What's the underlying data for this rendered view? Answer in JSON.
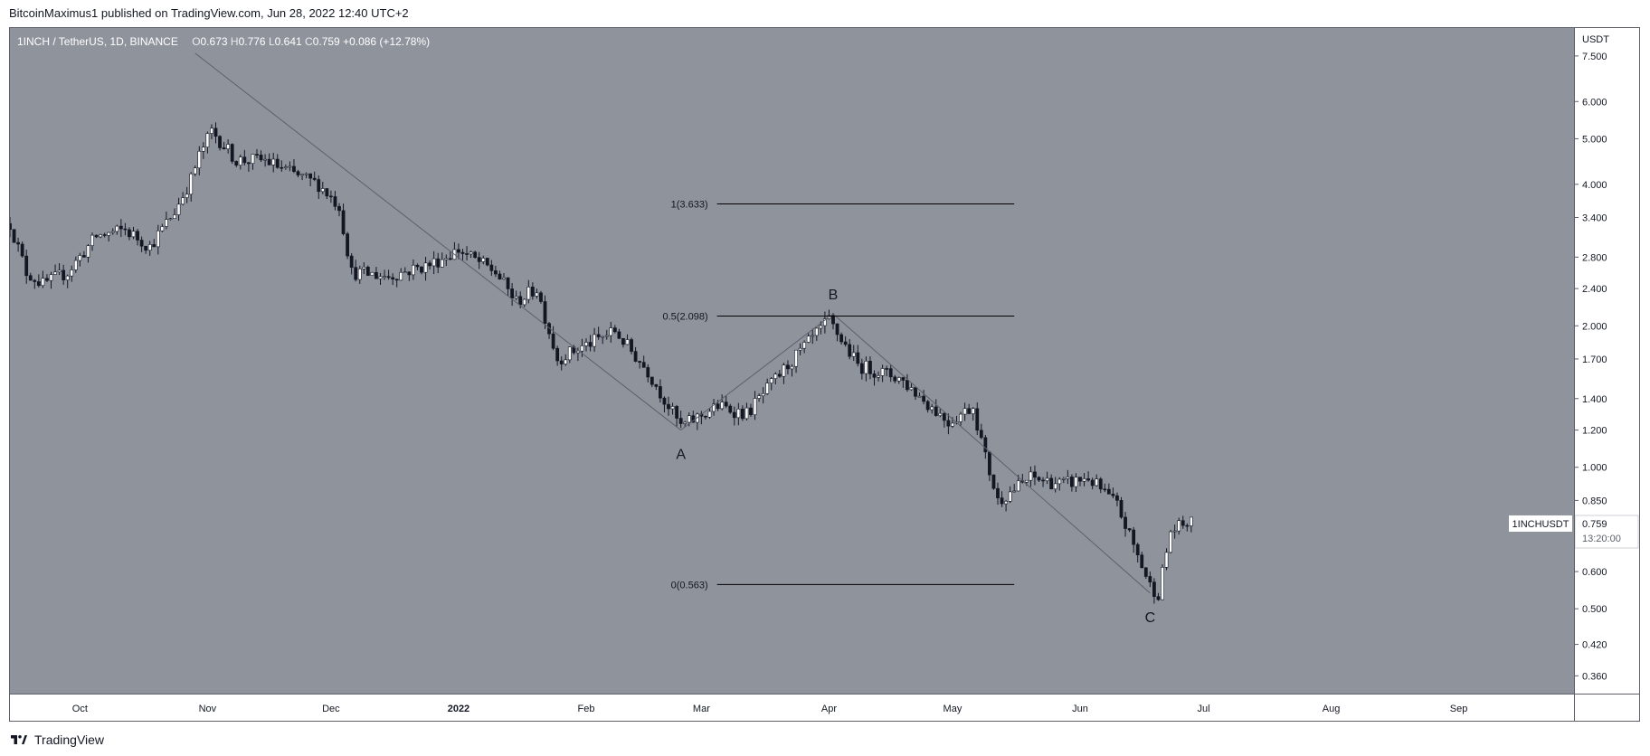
{
  "header": {
    "text": "BitcoinMaximus1 published on TradingView.com, Jun 28, 2022 12:40 UTC+2"
  },
  "legend": {
    "symbol": "1INCH / TetherUS, 1D, BINANCE",
    "o_label": "O",
    "o": "0.673",
    "h_label": "H",
    "h": "0.776",
    "l_label": "L",
    "l": "0.641",
    "c_label": "C",
    "c": "0.759",
    "change": "+0.086 (+12.78%)"
  },
  "price_axis": {
    "currency": "USDT"
  },
  "last_price": {
    "symbol": "1INCHUSDT",
    "price": "0.759",
    "countdown": "13:20:00"
  },
  "footer": {
    "brand": "TradingView"
  },
  "colors": {
    "plot_background": "#8f939c",
    "candles": "#131722",
    "candle_body_up": "#ffffff",
    "candle_body_down": "#131722",
    "lines": "#000000",
    "trend_lines": "#5d606b"
  },
  "icons": {
    "footer_logo": "tradingview-logo-icon"
  },
  "chart_data": {
    "type": "candlestick",
    "scale": "log",
    "y_unit": "USDT",
    "ylim": [
      0.33,
      8.6
    ],
    "y_ticks": [
      {
        "v": 7.5,
        "label": "7.500"
      },
      {
        "v": 6.0,
        "label": "6.000"
      },
      {
        "v": 5.0,
        "label": "5.000"
      },
      {
        "v": 4.0,
        "label": "4.000"
      },
      {
        "v": 3.4,
        "label": "3.400"
      },
      {
        "v": 2.8,
        "label": "2.800"
      },
      {
        "v": 2.4,
        "label": "2.400"
      },
      {
        "v": 2.0,
        "label": "2.000"
      },
      {
        "v": 1.7,
        "label": "1.700"
      },
      {
        "v": 1.4,
        "label": "1.400"
      },
      {
        "v": 1.2,
        "label": "1.200"
      },
      {
        "v": 1.0,
        "label": "1.000"
      },
      {
        "v": 0.85,
        "label": "0.850"
      },
      {
        "v": 0.6,
        "label": "0.600"
      },
      {
        "v": 0.5,
        "label": "0.500"
      },
      {
        "v": 0.42,
        "label": "0.420"
      },
      {
        "v": 0.36,
        "label": "0.360"
      }
    ],
    "xlim": [
      "2021-09-14",
      "2022-09-29"
    ],
    "x_ticks": [
      {
        "date": "2021-10-01",
        "label": "Oct"
      },
      {
        "date": "2021-11-01",
        "label": "Nov"
      },
      {
        "date": "2021-12-01",
        "label": "Dec"
      },
      {
        "date": "2022-01-01",
        "label": "2022"
      },
      {
        "date": "2022-02-01",
        "label": "Feb"
      },
      {
        "date": "2022-03-01",
        "label": "Mar"
      },
      {
        "date": "2022-04-01",
        "label": "Apr"
      },
      {
        "date": "2022-05-01",
        "label": "May"
      },
      {
        "date": "2022-06-01",
        "label": "Jun"
      },
      {
        "date": "2022-07-01",
        "label": "Jul"
      },
      {
        "date": "2022-08-01",
        "label": "Aug"
      },
      {
        "date": "2022-09-01",
        "label": "Sep"
      }
    ],
    "start_date": "2021-09-14",
    "close_anchors": [
      [
        "2021-09-14",
        3.3
      ],
      [
        "2021-09-18",
        2.6
      ],
      [
        "2021-09-22",
        2.45
      ],
      [
        "2021-09-28",
        2.6
      ],
      [
        "2021-10-05",
        3.1
      ],
      [
        "2021-10-12",
        3.2
      ],
      [
        "2021-10-18",
        2.95
      ],
      [
        "2021-10-24",
        3.5
      ],
      [
        "2021-10-28",
        4.1
      ],
      [
        "2021-10-30",
        4.6
      ],
      [
        "2021-11-02",
        5.2
      ],
      [
        "2021-11-08",
        4.5
      ],
      [
        "2021-11-15",
        4.5
      ],
      [
        "2021-11-22",
        4.2
      ],
      [
        "2021-11-28",
        4.0
      ],
      [
        "2021-12-03",
        3.6
      ],
      [
        "2021-12-06",
        2.6
      ],
      [
        "2021-12-15",
        2.55
      ],
      [
        "2021-12-25",
        2.7
      ],
      [
        "2022-01-01",
        2.9
      ],
      [
        "2022-01-10",
        2.6
      ],
      [
        "2022-01-15",
        2.25
      ],
      [
        "2022-01-20",
        2.4
      ],
      [
        "2022-01-25",
        1.7
      ],
      [
        "2022-02-08",
        1.95
      ],
      [
        "2022-02-16",
        1.6
      ],
      [
        "2022-02-24",
        1.22
      ],
      [
        "2022-03-05",
        1.35
      ],
      [
        "2022-03-12",
        1.3
      ],
      [
        "2022-03-22",
        1.65
      ],
      [
        "2022-04-01",
        2.05
      ],
      [
        "2022-04-08",
        1.65
      ],
      [
        "2022-04-18",
        1.55
      ],
      [
        "2022-04-30",
        1.25
      ],
      [
        "2022-05-06",
        1.35
      ],
      [
        "2022-05-09",
        1.05
      ],
      [
        "2022-05-12",
        0.85
      ],
      [
        "2022-05-20",
        0.95
      ],
      [
        "2022-05-28",
        0.92
      ],
      [
        "2022-06-03",
        0.95
      ],
      [
        "2022-06-10",
        0.83
      ],
      [
        "2022-06-18",
        0.56
      ],
      [
        "2022-06-20",
        0.54
      ],
      [
        "2022-06-23",
        0.73
      ],
      [
        "2022-06-27",
        0.76
      ],
      [
        "2022-06-28",
        0.759
      ]
    ],
    "fib_levels": [
      {
        "label": "1(3.633)",
        "value": 3.633
      },
      {
        "label": "0.5(2.098)",
        "value": 2.098
      },
      {
        "label": "0(0.563)",
        "value": 0.563
      }
    ],
    "fib_range": [
      "2022-02-24",
      "2022-05-16"
    ],
    "zigzag": [
      {
        "date": "2021-10-29",
        "value": 7.6
      },
      {
        "date": "2022-02-24",
        "value": 1.2,
        "label": "A"
      },
      {
        "date": "2022-04-02",
        "value": 2.12,
        "label": "B"
      },
      {
        "date": "2022-06-18",
        "value": 0.54,
        "label": "C"
      }
    ]
  }
}
